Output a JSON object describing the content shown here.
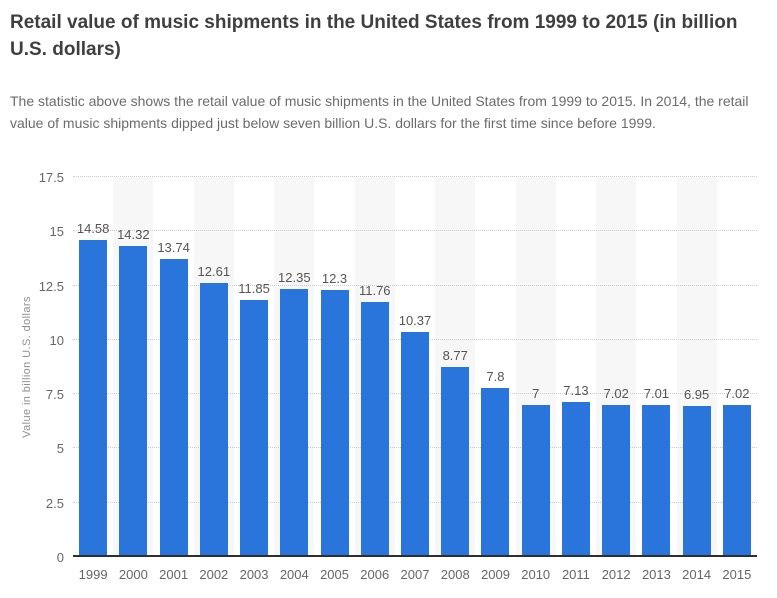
{
  "page": {
    "title": "Retail value of music shipments in the United States from 1999 to 2015 (in billion U.S. dollars)",
    "description": "The statistic above shows the retail value of music shipments in the United States from 1999 to 2015. In 2014, the retail value of music shipments dipped just below seven billion U.S. dollars for the first time since before 1999."
  },
  "chart_data": {
    "type": "bar",
    "title": "",
    "xlabel": "",
    "ylabel": "Value in billion U.S. dollars",
    "categories": [
      "1999",
      "2000",
      "2001",
      "2002",
      "2003",
      "2004",
      "2005",
      "2006",
      "2007",
      "2008",
      "2009",
      "2010",
      "2011",
      "2012",
      "2013",
      "2014",
      "2015"
    ],
    "values": [
      14.58,
      14.32,
      13.74,
      12.61,
      11.85,
      12.35,
      12.3,
      11.76,
      10.37,
      8.77,
      7.8,
      7,
      7.13,
      7.02,
      7.01,
      6.95,
      7.02
    ],
    "value_labels": [
      "14.58",
      "14.32",
      "13.74",
      "12.61",
      "11.85",
      "12.35",
      "12.3",
      "11.76",
      "10.37",
      "8.77",
      "7.8",
      "7",
      "7.13",
      "7.02",
      "7.01",
      "6.95",
      "7.02"
    ],
    "ylim": [
      0,
      17.5
    ],
    "yticks": [
      0,
      2.5,
      5,
      7.5,
      10,
      12.5,
      15,
      17.5
    ],
    "ytick_labels": [
      "0",
      "2.5",
      "5",
      "7.5",
      "10",
      "12.5",
      "15",
      "17.5"
    ],
    "grid": "horizontal-dotted",
    "legend": "none",
    "colors": {
      "bar": "#2a75dc",
      "column_band": "#f7f7f7",
      "gridline": "#cccccc",
      "axis_line": "#2e2e2e",
      "value_label": "#555555",
      "tick_label": "#666666",
      "axis_title": "#8f8f8f",
      "title_text": "#3f3f3f",
      "description_text": "#6b6b6b"
    },
    "band_pattern": "every second category column shaded, starting with 2000"
  }
}
